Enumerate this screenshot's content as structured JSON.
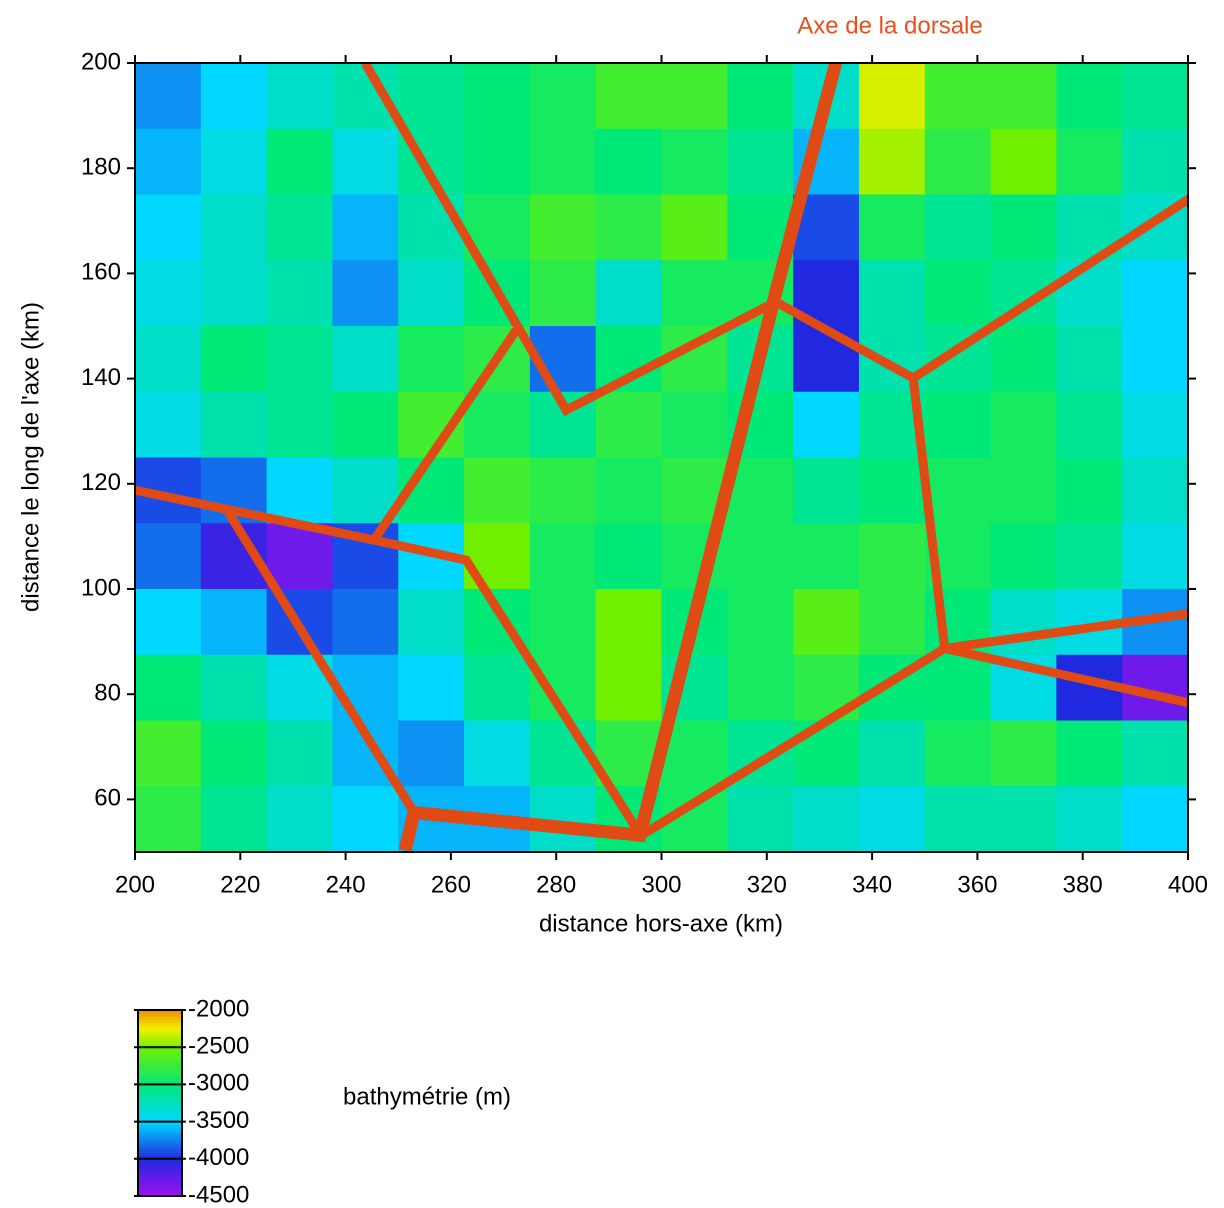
{
  "chart_data": {
    "type": "heatmap",
    "annotation": "Axe de la dorsale",
    "annotation_color": "#e8501e",
    "xlabel": "distance hors-axe (km)",
    "ylabel": "distance le long de l'axe (km)",
    "xlim": [
      200,
      400
    ],
    "ylim": [
      50,
      200
    ],
    "xticks": [
      200,
      220,
      240,
      260,
      280,
      300,
      320,
      340,
      360,
      380,
      400
    ],
    "yticks": [
      60,
      80,
      100,
      120,
      140,
      160,
      180,
      200
    ],
    "x": [
      206.25,
      218.75,
      231.25,
      243.75,
      256.25,
      268.75,
      281.25,
      293.75,
      306.25,
      318.75,
      331.25,
      343.75,
      356.25,
      368.75,
      381.25,
      393.75
    ],
    "y": [
      193.75,
      181.25,
      168.75,
      156.25,
      143.75,
      131.25,
      118.75,
      106.25,
      93.75,
      81.25,
      68.75,
      56.25
    ],
    "z": [
      [
        -3700,
        -3500,
        -3300,
        -3200,
        -3100,
        -3000,
        -2900,
        -2700,
        -2700,
        -3000,
        -3300,
        -2300,
        -2700,
        -2700,
        -3000,
        -3100
      ],
      [
        -3600,
        -3400,
        -3000,
        -3400,
        -3100,
        -3000,
        -2900,
        -3000,
        -2900,
        -3100,
        -3600,
        -2400,
        -2800,
        -2500,
        -2900,
        -3200
      ],
      [
        -3500,
        -3300,
        -3100,
        -3600,
        -3200,
        -2900,
        -2700,
        -2800,
        -2600,
        -3000,
        -3900,
        -2900,
        -3100,
        -3000,
        -3200,
        -3300
      ],
      [
        -3400,
        -3300,
        -3200,
        -3700,
        -3300,
        -3000,
        -2800,
        -3300,
        -2900,
        -2900,
        -4000,
        -3200,
        -3000,
        -3100,
        -3300,
        -3500
      ],
      [
        -3300,
        -3000,
        -3100,
        -3300,
        -2900,
        -2800,
        -3800,
        -3000,
        -2800,
        -3100,
        -4000,
        -3200,
        -3100,
        -3000,
        -3200,
        -3500
      ],
      [
        -3400,
        -3200,
        -3100,
        -3000,
        -2700,
        -2900,
        -3100,
        -2800,
        -2900,
        -3000,
        -3500,
        -3100,
        -3000,
        -2900,
        -3100,
        -3400
      ],
      [
        -3900,
        -3800,
        -3500,
        -3300,
        -3000,
        -2700,
        -2800,
        -2900,
        -2800,
        -2900,
        -3100,
        -3000,
        -2900,
        -2900,
        -3000,
        -3300
      ],
      [
        -3800,
        -4100,
        -4300,
        -3900,
        -3500,
        -2500,
        -2900,
        -3000,
        -2900,
        -2900,
        -2900,
        -2800,
        -2900,
        -3000,
        -3100,
        -3400
      ],
      [
        -3500,
        -3600,
        -3900,
        -3800,
        -3300,
        -3000,
        -2900,
        -2500,
        -3000,
        -2900,
        -2600,
        -2800,
        -3000,
        -3300,
        -3400,
        -3700
      ],
      [
        -3000,
        -3200,
        -3400,
        -3600,
        -3500,
        -3100,
        -2900,
        -2500,
        -3100,
        -2900,
        -2800,
        -3000,
        -3000,
        -3400,
        -4000,
        -4300
      ],
      [
        -2700,
        -3000,
        -3200,
        -3600,
        -3700,
        -3400,
        -3100,
        -2800,
        -2900,
        -3100,
        -3000,
        -3200,
        -2900,
        -2800,
        -3000,
        -3200
      ],
      [
        -2800,
        -3100,
        -3300,
        -3500,
        -3600,
        -3600,
        -3300,
        -3000,
        -2900,
        -3200,
        -3300,
        -3400,
        -3200,
        -3200,
        -3300,
        -3500
      ]
    ],
    "colorbar": {
      "label": "bathymétrie (m)",
      "ticks": [
        -2000,
        -2500,
        -3000,
        -3500,
        -4000,
        -4500
      ],
      "stops": [
        {
          "value": -4500,
          "color": "#a010f0"
        },
        {
          "value": -4000,
          "color": "#2028e0"
        },
        {
          "value": -3500,
          "color": "#00d8ff"
        },
        {
          "value": -3000,
          "color": "#00e878"
        },
        {
          "value": -2500,
          "color": "#70f000"
        },
        {
          "value": -2250,
          "color": "#f0f000"
        },
        {
          "value": -2000,
          "color": "#f09000"
        }
      ]
    },
    "lines": [
      {
        "color": "#e04a14",
        "x": [
          333.1,
          321.7,
          295.9,
          253.0,
          251.3
        ],
        "y": [
          200,
          156.4,
          53.2,
          57.5,
          50.3
        ]
      },
      {
        "color": "#e04a14",
        "x": [
          243.7,
          281.9,
          321.7,
          347.8,
          400.4
        ],
        "y": [
          200,
          134,
          154.6,
          140.1,
          174.3
        ]
      },
      {
        "color": "#e04a14",
        "x": [
          347.8,
          353.8,
          400
        ],
        "y": [
          140.1,
          88.7,
          95.3
        ]
      },
      {
        "color": "#e04a14",
        "x": [
          353.8,
          400
        ],
        "y": [
          88.7,
          78.4
        ]
      },
      {
        "color": "#e04a14",
        "x": [
          353.8,
          296.1
        ],
        "y": [
          88.7,
          53.1
        ]
      },
      {
        "color": "#e04a14",
        "x": [
          296.1,
          262.9,
          245.4,
          200
        ],
        "y": [
          53.1,
          105.5,
          109.3,
          118.8
        ]
      },
      {
        "color": "#e04a14",
        "x": [
          245.4,
          272.4
        ],
        "y": [
          109.3,
          149.2
        ]
      },
      {
        "color": "#e04a14",
        "x": [
          217.7,
          253.0
        ],
        "y": [
          114.6,
          57.5
        ]
      }
    ]
  }
}
